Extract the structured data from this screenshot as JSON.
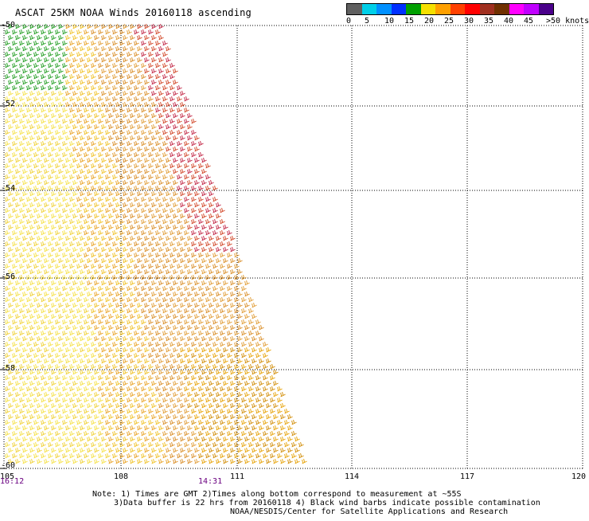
{
  "title": "ASCAT 25KM NOAA Winds 20160118 ascending",
  "colorbar": {
    "colors": [
      "#606060",
      "#00cfe8",
      "#0090ff",
      "#0030ff",
      "#00a000",
      "#f5e000",
      "#ffa000",
      "#ff4000",
      "#ff0000",
      "#a03020",
      "#703000",
      "#ff00ff",
      "#c000ff",
      "#4a008a"
    ],
    "labels": [
      "0",
      "5",
      "10",
      "15",
      "20",
      "25",
      "30",
      "35",
      "40",
      "45",
      ">50 knots"
    ]
  },
  "axes": {
    "lat_labels": [
      "-50",
      "-52",
      "-54",
      "-56",
      "-58",
      "-60"
    ],
    "lon_labels": [
      "105",
      "108",
      "111",
      "114",
      "117",
      "120"
    ],
    "time_labels": [
      "16:12",
      "14:31"
    ]
  },
  "notes": {
    "line1": "Note: 1) Times are GMT 2)Times along bottom correspond to measurement at ~55S",
    "line2": "3)Data buffer is 22 hrs from 20160118 4) Black wind barbs indicate possible contamination",
    "line3": "NOAA/NESDIS/Center for Satellite Applications and Research"
  }
}
